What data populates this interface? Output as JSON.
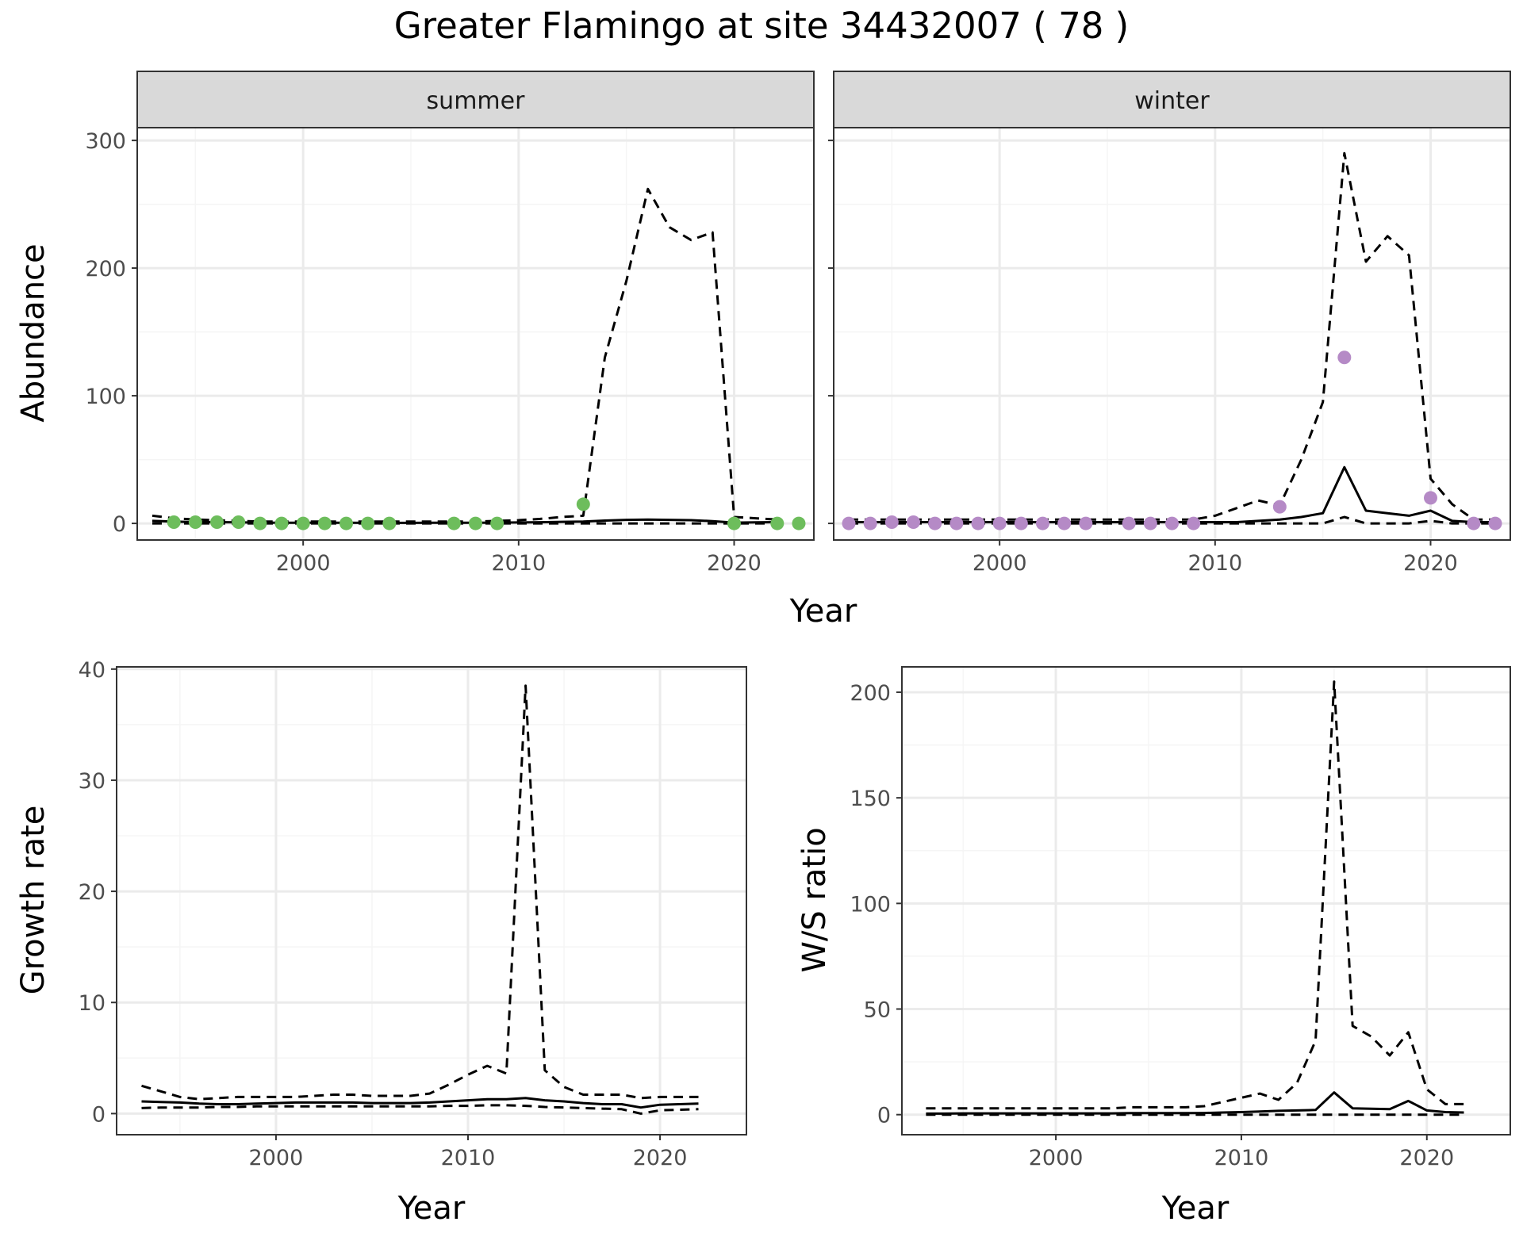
{
  "title": "Greater Flamingo at site 34432007 ( 78 )",
  "colors": {
    "summer_points": "#6dbd5c",
    "winter_points": "#b58ac6",
    "line": "#000000",
    "strip_fill": "#d9d9d9",
    "grid_major": "#ebebeb",
    "grid_minor": "#f5f5f5"
  },
  "chart_data": [
    {
      "type": "line",
      "panel": "summer",
      "strip_label": "summer",
      "xlabel": "Year",
      "ylabel": "Abundance",
      "xlim": [
        1992.3,
        2023.7
      ],
      "ylim": [
        -13,
        310
      ],
      "x_ticks": [
        2000,
        2010,
        2020
      ],
      "y_ticks": [
        0,
        100,
        200,
        300
      ],
      "grid": true,
      "series": [
        {
          "role": "fit",
          "style": "solid",
          "x": [
            1993,
            1994,
            1995,
            1996,
            1997,
            1998,
            1999,
            2000,
            2001,
            2002,
            2003,
            2004,
            2005,
            2006,
            2007,
            2008,
            2009,
            2010,
            2011,
            2012,
            2013,
            2014,
            2015,
            2016,
            2017,
            2018,
            2019,
            2020,
            2021,
            2022
          ],
          "values": [
            2,
            1.5,
            1,
            1,
            0.8,
            0.6,
            0.5,
            0.5,
            0.5,
            0.5,
            0.4,
            0.4,
            0.4,
            0.5,
            0.5,
            0.5,
            0.6,
            0.7,
            0.9,
            1.2,
            1.5,
            2.2,
            2.8,
            3,
            2.8,
            2.5,
            1.8,
            0.6,
            0.8,
            1
          ]
        },
        {
          "role": "upper",
          "style": "dashed",
          "x": [
            1993,
            1994,
            1995,
            1996,
            1997,
            1998,
            1999,
            2000,
            2001,
            2002,
            2003,
            2004,
            2005,
            2006,
            2007,
            2008,
            2009,
            2010,
            2011,
            2012,
            2013,
            2014,
            2015,
            2016,
            2017,
            2018,
            2019,
            2020,
            2021,
            2022
          ],
          "values": [
            6,
            4,
            3,
            2.5,
            2,
            1.5,
            1.5,
            1.5,
            1.5,
            1.5,
            1.5,
            1.5,
            1.5,
            1.5,
            1.5,
            1.5,
            2,
            2.5,
            3.5,
            5,
            6,
            130,
            190,
            262,
            232,
            222,
            228,
            5,
            4,
            3
          ]
        },
        {
          "role": "lower",
          "style": "dashed",
          "x": [
            1993,
            1994,
            1995,
            1996,
            1997,
            1998,
            1999,
            2000,
            2001,
            2002,
            2003,
            2004,
            2005,
            2006,
            2007,
            2008,
            2009,
            2010,
            2011,
            2012,
            2013,
            2014,
            2015,
            2016,
            2017,
            2018,
            2019,
            2020,
            2021,
            2022
          ],
          "values": [
            0,
            0,
            0,
            0,
            0,
            0,
            0,
            0,
            0,
            0,
            0,
            0,
            0,
            0,
            0,
            0,
            0,
            0,
            0,
            0,
            0,
            0,
            0,
            0,
            0,
            0,
            0,
            0,
            0,
            0
          ]
        },
        {
          "role": "observed",
          "style": "points",
          "x": [
            1994,
            1995,
            1996,
            1997,
            1998,
            1999,
            2000,
            2001,
            2002,
            2003,
            2004,
            2007,
            2008,
            2009,
            2013,
            2020,
            2022,
            2023
          ],
          "values": [
            1,
            1,
            1,
            1,
            0,
            0,
            0,
            0,
            0,
            0,
            0,
            0,
            0,
            0,
            15,
            0,
            0,
            0
          ]
        }
      ]
    },
    {
      "type": "line",
      "panel": "winter",
      "strip_label": "winter",
      "xlabel": "Year",
      "ylabel": "Abundance",
      "xlim": [
        1992.3,
        2023.7
      ],
      "ylim": [
        -13,
        310
      ],
      "x_ticks": [
        2000,
        2010,
        2020
      ],
      "y_ticks": [
        0,
        100,
        200,
        300
      ],
      "grid": true,
      "series": [
        {
          "role": "fit",
          "style": "solid",
          "x": [
            1993,
            1994,
            1995,
            1996,
            1997,
            1998,
            1999,
            2000,
            2001,
            2002,
            2003,
            2004,
            2005,
            2006,
            2007,
            2008,
            2009,
            2010,
            2011,
            2012,
            2013,
            2014,
            2015,
            2016,
            2017,
            2018,
            2019,
            2020,
            2021,
            2022,
            2023
          ],
          "values": [
            1,
            1,
            1,
            1,
            1,
            1,
            1,
            1,
            1,
            1,
            1,
            1,
            1,
            1,
            1,
            1,
            1,
            1,
            1,
            2,
            3,
            5,
            8,
            44,
            10,
            8,
            6,
            10,
            2,
            1,
            1
          ]
        },
        {
          "role": "upper",
          "style": "dashed",
          "x": [
            1993,
            1994,
            1995,
            1996,
            1997,
            1998,
            1999,
            2000,
            2001,
            2002,
            2003,
            2004,
            2005,
            2006,
            2007,
            2008,
            2009,
            2010,
            2011,
            2012,
            2013,
            2014,
            2015,
            2016,
            2017,
            2018,
            2019,
            2020,
            2021,
            2022,
            2023
          ],
          "values": [
            3,
            3,
            3,
            3,
            3,
            3,
            3,
            3,
            3,
            3,
            3,
            3,
            3,
            3,
            3,
            3,
            3,
            6,
            12,
            18,
            14,
            50,
            95,
            290,
            205,
            225,
            210,
            35,
            15,
            3,
            3
          ]
        },
        {
          "role": "lower",
          "style": "dashed",
          "x": [
            1993,
            1994,
            1995,
            1996,
            1997,
            1998,
            1999,
            2000,
            2001,
            2002,
            2003,
            2004,
            2005,
            2006,
            2007,
            2008,
            2009,
            2010,
            2011,
            2012,
            2013,
            2014,
            2015,
            2016,
            2017,
            2018,
            2019,
            2020,
            2021,
            2022,
            2023
          ],
          "values": [
            0,
            0,
            0,
            0,
            0,
            0,
            0,
            0,
            0,
            0,
            0,
            0,
            0,
            0,
            0,
            0,
            0,
            0,
            0,
            0,
            0,
            0,
            0,
            5,
            0,
            0,
            0,
            2,
            0,
            0,
            0
          ]
        },
        {
          "role": "observed",
          "style": "points",
          "x": [
            1993,
            1994,
            1995,
            1996,
            1997,
            1998,
            1999,
            2000,
            2001,
            2002,
            2003,
            2004,
            2006,
            2007,
            2008,
            2009,
            2013,
            2016,
            2020,
            2022,
            2023
          ],
          "values": [
            0,
            0,
            1,
            1,
            0,
            0,
            0,
            0,
            0,
            0,
            0,
            0,
            0,
            0,
            0,
            0,
            13,
            130,
            20,
            0,
            0
          ]
        }
      ]
    },
    {
      "type": "line",
      "panel": "growth",
      "xlabel": "Year",
      "ylabel": "Growth rate",
      "xlim": [
        1991.7,
        2024.5
      ],
      "ylim": [
        -1.9,
        40.2
      ],
      "x_ticks": [
        2000,
        2010,
        2020
      ],
      "y_ticks": [
        0,
        10,
        20,
        30,
        40
      ],
      "grid": true,
      "series": [
        {
          "role": "fit",
          "style": "solid",
          "x": [
            1993,
            1994,
            1995,
            1996,
            1997,
            1998,
            1999,
            2000,
            2001,
            2002,
            2003,
            2004,
            2005,
            2006,
            2007,
            2008,
            2009,
            2010,
            2011,
            2012,
            2013,
            2014,
            2015,
            2016,
            2017,
            2018,
            2019,
            2020,
            2021,
            2022
          ],
          "values": [
            1.1,
            1.05,
            1,
            0.9,
            0.85,
            0.85,
            0.9,
            0.95,
            1,
            1,
            1,
            1,
            0.95,
            0.95,
            0.95,
            1,
            1.1,
            1.2,
            1.3,
            1.3,
            1.4,
            1.2,
            1.1,
            0.95,
            0.85,
            0.85,
            0.55,
            0.8,
            0.85,
            0.9
          ]
        },
        {
          "role": "upper",
          "style": "dashed",
          "x": [
            1993,
            1994,
            1995,
            1996,
            1997,
            1998,
            1999,
            2000,
            2001,
            2002,
            2003,
            2004,
            2005,
            2006,
            2007,
            2008,
            2009,
            2010,
            2011,
            2012,
            2013,
            2014,
            2015,
            2016,
            2017,
            2018,
            2019,
            2020,
            2021,
            2022
          ],
          "values": [
            2.5,
            2,
            1.5,
            1.3,
            1.4,
            1.5,
            1.5,
            1.5,
            1.5,
            1.6,
            1.7,
            1.7,
            1.6,
            1.6,
            1.6,
            1.8,
            2.6,
            3.5,
            4.3,
            3.6,
            38.5,
            3.9,
            2.4,
            1.7,
            1.7,
            1.7,
            1.4,
            1.5,
            1.5,
            1.5
          ]
        },
        {
          "role": "lower",
          "style": "dashed",
          "x": [
            1993,
            1994,
            1995,
            1996,
            1997,
            1998,
            1999,
            2000,
            2001,
            2002,
            2003,
            2004,
            2005,
            2006,
            2007,
            2008,
            2009,
            2010,
            2011,
            2012,
            2013,
            2014,
            2015,
            2016,
            2017,
            2018,
            2019,
            2020,
            2021,
            2022
          ],
          "values": [
            0.5,
            0.55,
            0.55,
            0.55,
            0.6,
            0.6,
            0.65,
            0.65,
            0.65,
            0.65,
            0.65,
            0.65,
            0.65,
            0.65,
            0.65,
            0.65,
            0.7,
            0.7,
            0.75,
            0.75,
            0.7,
            0.6,
            0.55,
            0.5,
            0.45,
            0.4,
            0,
            0.3,
            0.35,
            0.4
          ]
        }
      ]
    },
    {
      "type": "line",
      "panel": "ws_ratio",
      "xlabel": "Year",
      "ylabel": "W/S ratio",
      "xlim": [
        1991.7,
        2024.5
      ],
      "ylim": [
        -9.5,
        212
      ],
      "x_ticks": [
        2000,
        2010,
        2020
      ],
      "y_ticks": [
        0,
        50,
        100,
        150,
        200
      ],
      "grid": true,
      "series": [
        {
          "role": "fit",
          "style": "solid",
          "x": [
            1993,
            1994,
            1995,
            1996,
            1997,
            1998,
            1999,
            2000,
            2001,
            2002,
            2003,
            2004,
            2005,
            2006,
            2007,
            2008,
            2009,
            2010,
            2011,
            2012,
            2013,
            2014,
            2015,
            2016,
            2017,
            2018,
            2019,
            2020,
            2021,
            2022
          ],
          "values": [
            0.5,
            0.5,
            0.6,
            0.6,
            0.6,
            0.6,
            0.6,
            0.6,
            0.6,
            0.6,
            0.6,
            0.7,
            0.7,
            0.7,
            0.7,
            0.8,
            1,
            1.2,
            1.5,
            1.8,
            2,
            2.2,
            10.5,
            3,
            2.8,
            2.6,
            6.5,
            2,
            1.2,
            1
          ]
        },
        {
          "role": "upper",
          "style": "dashed",
          "x": [
            1993,
            1994,
            1995,
            1996,
            1997,
            1998,
            1999,
            2000,
            2001,
            2002,
            2003,
            2004,
            2005,
            2006,
            2007,
            2008,
            2009,
            2010,
            2011,
            2012,
            2013,
            2014,
            2015,
            2016,
            2017,
            2018,
            2019,
            2020,
            2021,
            2022
          ],
          "values": [
            3,
            3,
            3,
            3,
            3,
            3,
            3,
            3,
            3,
            3,
            3,
            3.5,
            3.5,
            3.5,
            3.5,
            4,
            6,
            8,
            10,
            7,
            15,
            35,
            205,
            42,
            37,
            28,
            39,
            12,
            5,
            5
          ]
        },
        {
          "role": "lower",
          "style": "dashed",
          "x": [
            1993,
            1994,
            1995,
            1996,
            1997,
            1998,
            1999,
            2000,
            2001,
            2002,
            2003,
            2004,
            2005,
            2006,
            2007,
            2008,
            2009,
            2010,
            2011,
            2012,
            2013,
            2014,
            2015,
            2016,
            2017,
            2018,
            2019,
            2020,
            2021,
            2022
          ],
          "values": [
            0,
            0,
            0,
            0,
            0,
            0,
            0,
            0,
            0,
            0,
            0,
            0,
            0,
            0,
            0,
            0,
            0,
            0,
            0,
            0,
            0,
            0,
            0,
            0,
            0,
            0,
            0,
            0,
            0,
            0
          ]
        }
      ]
    }
  ]
}
